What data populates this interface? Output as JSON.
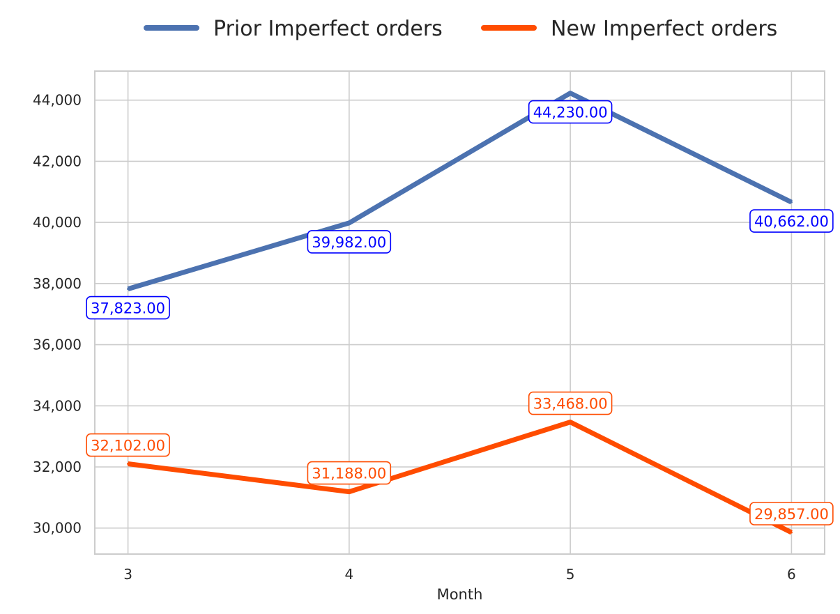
{
  "chart_data": {
    "type": "line",
    "x": [
      3,
      4,
      5,
      6
    ],
    "series": [
      {
        "name": "Prior Imperfect orders",
        "values": [
          37823,
          39982,
          44230,
          40662
        ],
        "labels": [
          "37,823.00",
          "39,982.00",
          "44,230.00",
          "40,662.00"
        ],
        "color": "#4C72B0",
        "label_color": "#0000FF"
      },
      {
        "name": "New Imperfect orders",
        "values": [
          32102,
          31188,
          33468,
          29857
        ],
        "labels": [
          "32,102.00",
          "31,188.00",
          "33,468.00",
          "29,857.00"
        ],
        "color": "#FF4C00",
        "label_color": "#FF4C00"
      }
    ],
    "xlabel": "Month",
    "ylabel": "",
    "x_ticks": [
      "3",
      "4",
      "5",
      "6"
    ],
    "y_ticks": [
      "30,000",
      "32,000",
      "34,000",
      "36,000",
      "38,000",
      "40,000",
      "42,000",
      "44,000"
    ],
    "xlim": [
      2.85,
      6.15
    ],
    "ylim": [
      29150,
      44950
    ],
    "grid": true,
    "legend_position": "top-center"
  }
}
